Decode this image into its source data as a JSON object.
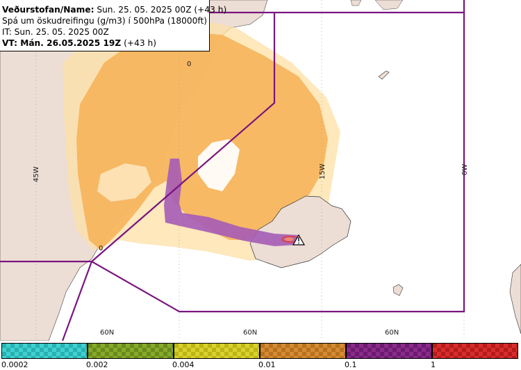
{
  "infobox": {
    "line1_label": "Veðurstofan/Name:",
    "line1_value": "Sun. 25. 05. 2025 00Z (+43 h)",
    "line2": "Spá um öskudreifingu (g/m3) í 500hPa (18000ft)",
    "line3": "IT: Sun. 25. 05. 2025 00Z",
    "line4_label": "VT: Mán. 26.05.2025 19Z",
    "line4_value": "(+43 h)"
  },
  "map": {
    "lon_labels": [
      "45W",
      "15W",
      "0W"
    ],
    "lat_labels": [
      "60N",
      "60N",
      "60N"
    ],
    "contour_labels": [
      "0",
      "0"
    ],
    "colors": {
      "land": "#ecddd5",
      "ash_orange": "#f6b45a",
      "ash_light": "#fde0a6",
      "ash_purple": "#a55cb6",
      "ash_red": "#e8382e",
      "boundary": "#7a1480",
      "grid": "#9a9a9a"
    }
  },
  "legend": {
    "bins": [
      {
        "color": "#3fd1d1",
        "alt": "#2ab0b0"
      },
      {
        "color": "#86aa2a",
        "alt": "#6a8a1c"
      },
      {
        "color": "#d9d12c",
        "alt": "#bcb518"
      },
      {
        "color": "#d58b33",
        "alt": "#b7711f"
      },
      {
        "color": "#8a2b8c",
        "alt": "#6b1b6d"
      },
      {
        "color": "#d82d2d",
        "alt": "#b51c1c"
      }
    ],
    "labels": [
      "0.0002",
      "0.002",
      "0.004",
      "0.01",
      "0.1",
      "1"
    ]
  }
}
